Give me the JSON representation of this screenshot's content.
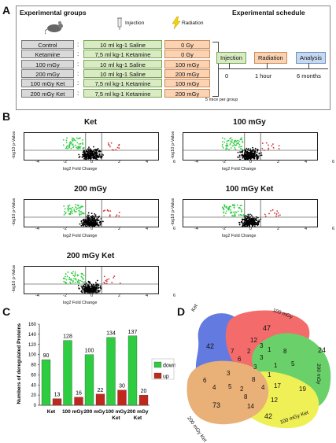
{
  "panels": {
    "A": "A",
    "B": "B",
    "C": "C",
    "D": "D"
  },
  "panelA": {
    "groups_title": "Experimental groups",
    "schedule_title": "Experimental schedule",
    "injection_label": "Injection",
    "radiation_label": "Radiation",
    "groups": [
      {
        "name": "Control",
        "injection": "10 ml kg-1 Saline",
        "radiation": "0 Gy"
      },
      {
        "name": "Ketamine",
        "injection": "7,5 ml kg-1 Ketamine",
        "radiation": "0 Gy"
      },
      {
        "name": "100 mGy",
        "injection": "10 ml kg-1 Saline",
        "radiation": "100 mGy"
      },
      {
        "name": "200 mGy",
        "injection": "10 ml kg-1 Saline",
        "radiation": "200 mGy"
      },
      {
        "name": "100 mGy Ket",
        "injection": "7,5 ml kg-1 Ketamine",
        "radiation": "100 mGy"
      },
      {
        "name": "200 mGy Ket",
        "injection": "7,5 ml kg-1 Ketamine",
        "radiation": "200 mGy"
      }
    ],
    "mice_note": "5 mice per group",
    "schedule": [
      {
        "label": "Injection",
        "time": "0",
        "color": "#d8ebc2",
        "border": "#7aa35a"
      },
      {
        "label": "Radiation",
        "time": "1 hour",
        "color": "#fbd3b3",
        "border": "#c98b5a"
      },
      {
        "label": "Analysis",
        "time": "6 months",
        "color": "#c5d9f1",
        "border": "#6f8fc0"
      }
    ]
  },
  "panelB": {
    "xlabel": "log2 Fold Change",
    "ylabel": "-log10 p-Value",
    "xticks": [
      "-4",
      "-2",
      "0",
      "2",
      "4",
      "6"
    ],
    "plots": [
      {
        "title": "Ket"
      },
      {
        "title": "100 mGy"
      },
      {
        "title": "200 mGy"
      },
      {
        "title": "100 mGy Ket"
      },
      {
        "title": "200 mGy Ket"
      }
    ]
  },
  "chart_data": {
    "type": "bar",
    "ylabel": "Numbers of deregulated Proteins",
    "ylim": [
      0,
      160
    ],
    "yticks": [
      0,
      20,
      40,
      60,
      80,
      100,
      120,
      140,
      160
    ],
    "categories": [
      "Ket",
      "100 mGy",
      "200 mGy",
      "100 mGy Ket",
      "200 mGy Ket"
    ],
    "series": [
      {
        "name": "down",
        "color": "#2ecc40",
        "values": [
          90,
          128,
          100,
          134,
          137
        ]
      },
      {
        "name": "up",
        "color": "#c0281e",
        "values": [
          13,
          16,
          22,
          30,
          20
        ]
      }
    ],
    "legend_position": "right"
  },
  "panelD": {
    "sets": [
      {
        "label": "Ket",
        "color": "#2f4fd6"
      },
      {
        "label": "100 mGy",
        "color": "#f03a3a"
      },
      {
        "label": "200 mGy",
        "color": "#39c239"
      },
      {
        "label": "100 mGy Ket",
        "color": "#eaea1e"
      },
      {
        "label": "200 mGy Ket",
        "color": "#e2964a"
      }
    ],
    "numbers": [
      "42",
      "47",
      "24",
      "42",
      "73",
      "12",
      "2",
      "3",
      "7",
      "6",
      "3",
      "1",
      "8",
      "1",
      "5",
      "3",
      "5",
      "3",
      "19",
      "17",
      "8",
      "1",
      "2",
      "4",
      "8",
      "14",
      "12",
      "6",
      "4"
    ]
  }
}
